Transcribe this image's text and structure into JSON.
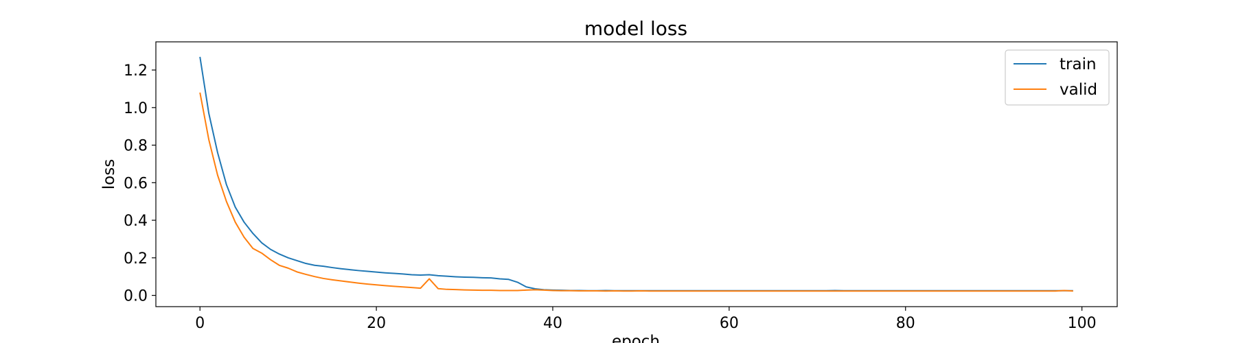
{
  "chart_data": {
    "type": "line",
    "title": "model loss",
    "xlabel": "epoch",
    "ylabel": "loss",
    "xlim": [
      -5,
      104
    ],
    "ylim": [
      -0.06,
      1.35
    ],
    "xticks": [
      0,
      20,
      40,
      60,
      80,
      100
    ],
    "yticks": [
      0.0,
      0.2,
      0.4,
      0.6,
      0.8,
      1.0,
      1.2
    ],
    "ytick_labels": [
      "0.0",
      "0.2",
      "0.4",
      "0.6",
      "0.8",
      "1.0",
      "1.2"
    ],
    "grid": false,
    "legend_position": "top-right",
    "series": [
      {
        "name": "train",
        "color": "#1f77b4",
        "x": [
          0,
          1,
          2,
          3,
          4,
          5,
          6,
          7,
          8,
          9,
          10,
          11,
          12,
          13,
          14,
          15,
          16,
          17,
          18,
          19,
          20,
          21,
          22,
          23,
          24,
          25,
          26,
          27,
          28,
          29,
          30,
          31,
          32,
          33,
          34,
          35,
          36,
          37,
          38,
          39,
          40,
          41,
          42,
          43,
          44,
          45,
          46,
          47,
          48,
          49,
          50,
          51,
          52,
          53,
          54,
          55,
          56,
          57,
          58,
          59,
          60,
          61,
          62,
          63,
          64,
          65,
          66,
          67,
          68,
          69,
          70,
          71,
          72,
          73,
          74,
          75,
          76,
          77,
          78,
          79,
          80,
          81,
          82,
          83,
          84,
          85,
          86,
          87,
          88,
          89,
          90,
          91,
          92,
          93,
          94,
          95,
          96,
          97,
          98,
          99
        ],
        "y": [
          1.27,
          0.97,
          0.76,
          0.59,
          0.47,
          0.39,
          0.33,
          0.28,
          0.245,
          0.22,
          0.2,
          0.185,
          0.17,
          0.16,
          0.155,
          0.148,
          0.142,
          0.137,
          0.132,
          0.128,
          0.124,
          0.12,
          0.117,
          0.114,
          0.11,
          0.108,
          0.11,
          0.105,
          0.102,
          0.099,
          0.097,
          0.096,
          0.094,
          0.093,
          0.088,
          0.085,
          0.07,
          0.045,
          0.035,
          0.03,
          0.028,
          0.027,
          0.026,
          0.026,
          0.025,
          0.025,
          0.026,
          0.025,
          0.025,
          0.025,
          0.025,
          0.025,
          0.025,
          0.025,
          0.025,
          0.025,
          0.025,
          0.025,
          0.025,
          0.025,
          0.025,
          0.025,
          0.025,
          0.025,
          0.025,
          0.025,
          0.025,
          0.025,
          0.025,
          0.025,
          0.025,
          0.025,
          0.026,
          0.025,
          0.025,
          0.025,
          0.025,
          0.025,
          0.025,
          0.025,
          0.025,
          0.025,
          0.025,
          0.025,
          0.025,
          0.025,
          0.025,
          0.025,
          0.025,
          0.025,
          0.025,
          0.025,
          0.025,
          0.025,
          0.025,
          0.025,
          0.025,
          0.025,
          0.025,
          0.025
        ]
      },
      {
        "name": "valid",
        "color": "#ff7f0e",
        "x": [
          0,
          1,
          2,
          3,
          4,
          5,
          6,
          7,
          8,
          9,
          10,
          11,
          12,
          13,
          14,
          15,
          16,
          17,
          18,
          19,
          20,
          21,
          22,
          23,
          24,
          25,
          26,
          27,
          28,
          29,
          30,
          31,
          32,
          33,
          34,
          35,
          36,
          37,
          38,
          39,
          40,
          41,
          42,
          43,
          44,
          45,
          46,
          47,
          48,
          49,
          50,
          51,
          52,
          53,
          54,
          55,
          56,
          57,
          58,
          59,
          60,
          61,
          62,
          63,
          64,
          65,
          66,
          67,
          68,
          69,
          70,
          71,
          72,
          73,
          74,
          75,
          76,
          77,
          78,
          79,
          80,
          81,
          82,
          83,
          84,
          85,
          86,
          87,
          88,
          89,
          90,
          91,
          92,
          93,
          94,
          95,
          96,
          97,
          98,
          99
        ],
        "y": [
          1.08,
          0.83,
          0.64,
          0.5,
          0.39,
          0.31,
          0.25,
          0.225,
          0.19,
          0.16,
          0.145,
          0.125,
          0.112,
          0.1,
          0.09,
          0.083,
          0.077,
          0.071,
          0.065,
          0.06,
          0.056,
          0.052,
          0.048,
          0.045,
          0.042,
          0.038,
          0.088,
          0.036,
          0.032,
          0.031,
          0.029,
          0.028,
          0.027,
          0.027,
          0.026,
          0.026,
          0.026,
          0.028,
          0.03,
          0.028,
          0.026,
          0.025,
          0.025,
          0.024,
          0.024,
          0.024,
          0.023,
          0.024,
          0.023,
          0.023,
          0.024,
          0.023,
          0.023,
          0.023,
          0.023,
          0.023,
          0.023,
          0.023,
          0.023,
          0.023,
          0.023,
          0.023,
          0.023,
          0.023,
          0.023,
          0.023,
          0.023,
          0.023,
          0.023,
          0.023,
          0.023,
          0.023,
          0.023,
          0.023,
          0.023,
          0.023,
          0.023,
          0.023,
          0.023,
          0.023,
          0.023,
          0.023,
          0.023,
          0.023,
          0.023,
          0.023,
          0.023,
          0.023,
          0.023,
          0.023,
          0.023,
          0.023,
          0.023,
          0.023,
          0.023,
          0.023,
          0.023,
          0.023,
          0.026,
          0.023
        ]
      }
    ]
  }
}
